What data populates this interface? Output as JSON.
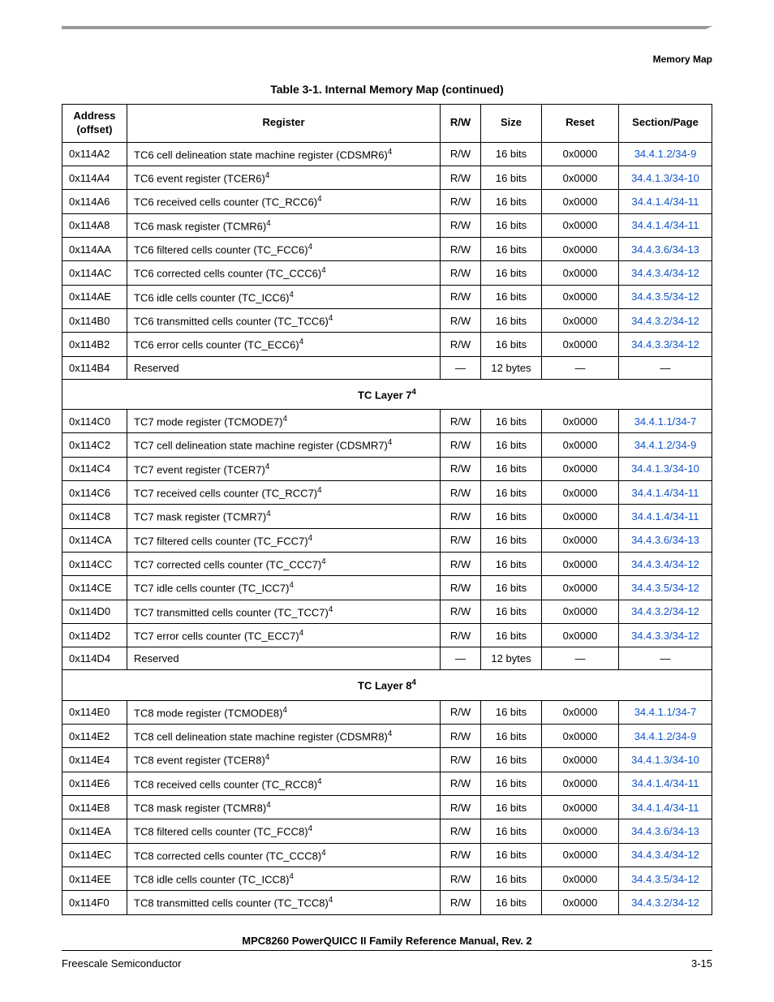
{
  "header": {
    "label": "Memory Map"
  },
  "table": {
    "title": "Table 3-1. Internal Memory Map (continued)",
    "columns": {
      "address": "Address\n(offset)",
      "register": "Register",
      "rw": "R/W",
      "size": "Size",
      "reset": "Reset",
      "section": "Section/Page"
    },
    "rows": [
      {
        "addr": "0x114A2",
        "reg": "TC6 cell delineation state machine register (CDSMR6)",
        "sup": "4",
        "rw": "R/W",
        "size": "16 bits",
        "reset": "0x0000",
        "section": "34.4.1.2/34-9",
        "link": true
      },
      {
        "addr": "0x114A4",
        "reg": "TC6 event register (TCER6)",
        "sup": "4",
        "rw": "R/W",
        "size": "16 bits",
        "reset": "0x0000",
        "section": "34.4.1.3/34-10",
        "link": true
      },
      {
        "addr": "0x114A6",
        "reg": "TC6 received cells counter (TC_RCC6)",
        "sup": "4",
        "rw": "R/W",
        "size": "16 bits",
        "reset": "0x0000",
        "section": "34.4.1.4/34-11",
        "link": true
      },
      {
        "addr": "0x114A8",
        "reg": "TC6 mask register (TCMR6)",
        "sup": "4",
        "rw": "R/W",
        "size": "16 bits",
        "reset": "0x0000",
        "section": "34.4.1.4/34-11",
        "link": true
      },
      {
        "addr": "0x114AA",
        "reg": "TC6 filtered cells counter (TC_FCC6)",
        "sup": "4",
        "rw": "R/W",
        "size": "16 bits",
        "reset": "0x0000",
        "section": "34.4.3.6/34-13",
        "link": true
      },
      {
        "addr": "0x114AC",
        "reg": "TC6 corrected cells counter (TC_CCC6)",
        "sup": "4",
        "rw": "R/W",
        "size": "16 bits",
        "reset": "0x0000",
        "section": "34.4.3.4/34-12",
        "link": true
      },
      {
        "addr": "0x114AE",
        "reg": "TC6 idle cells counter (TC_ICC6)",
        "sup": "4",
        "rw": "R/W",
        "size": "16 bits",
        "reset": "0x0000",
        "section": "34.4.3.5/34-12",
        "link": true
      },
      {
        "addr": "0x114B0",
        "reg": "TC6 transmitted cells counter (TC_TCC6)",
        "sup": "4",
        "rw": "R/W",
        "size": "16 bits",
        "reset": "0x0000",
        "section": "34.4.3.2/34-12",
        "link": true
      },
      {
        "addr": "0x114B2",
        "reg": "TC6 error cells counter (TC_ECC6)",
        "sup": "4",
        "rw": "R/W",
        "size": "16 bits",
        "reset": "0x0000",
        "section": "34.4.3.3/34-12",
        "link": true
      },
      {
        "addr": "0x114B4",
        "reg": "Reserved",
        "sup": "",
        "rw": "—",
        "size": "12 bytes",
        "reset": "—",
        "section": "—",
        "link": false
      },
      {
        "section_header": "TC Layer 7",
        "sup": "4"
      },
      {
        "addr": "0x114C0",
        "reg": "TC7 mode register (TCMODE7)",
        "sup": "4",
        "rw": "R/W",
        "size": "16 bits",
        "reset": "0x0000",
        "section": "34.4.1.1/34-7",
        "link": true
      },
      {
        "addr": "0x114C2",
        "reg": "TC7 cell delineation state machine register (CDSMR7)",
        "sup": "4",
        "rw": "R/W",
        "size": "16 bits",
        "reset": "0x0000",
        "section": "34.4.1.2/34-9",
        "link": true
      },
      {
        "addr": "0x114C4",
        "reg": "TC7 event register (TCER7)",
        "sup": "4",
        "rw": "R/W",
        "size": "16 bits",
        "reset": "0x0000",
        "section": "34.4.1.3/34-10",
        "link": true
      },
      {
        "addr": "0x114C6",
        "reg": "TC7 received cells counter (TC_RCC7)",
        "sup": "4",
        "rw": "R/W",
        "size": "16 bits",
        "reset": "0x0000",
        "section": "34.4.1.4/34-11",
        "link": true
      },
      {
        "addr": "0x114C8",
        "reg": "TC7 mask register (TCMR7)",
        "sup": "4",
        "rw": "R/W",
        "size": "16 bits",
        "reset": "0x0000",
        "section": "34.4.1.4/34-11",
        "link": true
      },
      {
        "addr": "0x114CA",
        "reg": "TC7 filtered cells counter (TC_FCC7)",
        "sup": "4",
        "rw": "R/W",
        "size": "16 bits",
        "reset": "0x0000",
        "section": "34.4.3.6/34-13",
        "link": true
      },
      {
        "addr": "0x114CC",
        "reg": "TC7 corrected cells counter (TC_CCC7)",
        "sup": "4",
        "rw": "R/W",
        "size": "16 bits",
        "reset": "0x0000",
        "section": "34.4.3.4/34-12",
        "link": true
      },
      {
        "addr": "0x114CE",
        "reg": "TC7 idle cells counter (TC_ICC7)",
        "sup": "4",
        "rw": "R/W",
        "size": "16 bits",
        "reset": "0x0000",
        "section": "34.4.3.5/34-12",
        "link": true
      },
      {
        "addr": "0x114D0",
        "reg": "TC7 transmitted cells counter (TC_TCC7)",
        "sup": "4",
        "rw": "R/W",
        "size": "16 bits",
        "reset": "0x0000",
        "section": "34.4.3.2/34-12",
        "link": true
      },
      {
        "addr": "0x114D2",
        "reg": "TC7 error cells counter (TC_ECC7)",
        "sup": "4",
        "rw": "R/W",
        "size": "16 bits",
        "reset": "0x0000",
        "section": "34.4.3.3/34-12",
        "link": true
      },
      {
        "addr": "0x114D4",
        "reg": "Reserved",
        "sup": "",
        "rw": "—",
        "size": "12 bytes",
        "reset": "—",
        "section": "—",
        "link": false
      },
      {
        "section_header": "TC Layer 8",
        "sup": "4"
      },
      {
        "addr": "0x114E0",
        "reg": "TC8 mode register (TCMODE8)",
        "sup": "4",
        "rw": "R/W",
        "size": "16 bits",
        "reset": "0x0000",
        "section": "34.4.1.1/34-7",
        "link": true
      },
      {
        "addr": "0x114E2",
        "reg": "TC8 cell delineation state machine register (CDSMR8)",
        "sup": "4",
        "rw": "R/W",
        "size": "16 bits",
        "reset": "0x0000",
        "section": "34.4.1.2/34-9",
        "link": true
      },
      {
        "addr": "0x114E4",
        "reg": "TC8 event register (TCER8)",
        "sup": "4",
        "rw": "R/W",
        "size": "16 bits",
        "reset": "0x0000",
        "section": "34.4.1.3/34-10",
        "link": true
      },
      {
        "addr": "0x114E6",
        "reg": "TC8 received cells counter (TC_RCC8)",
        "sup": "4",
        "rw": "R/W",
        "size": "16 bits",
        "reset": "0x0000",
        "section": "34.4.1.4/34-11",
        "link": true
      },
      {
        "addr": "0x114E8",
        "reg": "TC8 mask register (TCMR8)",
        "sup": "4",
        "rw": "R/W",
        "size": "16 bits",
        "reset": "0x0000",
        "section": "34.4.1.4/34-11",
        "link": true
      },
      {
        "addr": "0x114EA",
        "reg": "TC8 filtered cells counter (TC_FCC8)",
        "sup": "4",
        "rw": "R/W",
        "size": "16 bits",
        "reset": "0x0000",
        "section": "34.4.3.6/34-13",
        "link": true
      },
      {
        "addr": "0x114EC",
        "reg": "TC8 corrected cells counter (TC_CCC8)",
        "sup": "4",
        "rw": "R/W",
        "size": "16 bits",
        "reset": "0x0000",
        "section": "34.4.3.4/34-12",
        "link": true
      },
      {
        "addr": "0x114EE",
        "reg": "TC8 idle cells counter (TC_ICC8)",
        "sup": "4",
        "rw": "R/W",
        "size": "16 bits",
        "reset": "0x0000",
        "section": "34.4.3.5/34-12",
        "link": true
      },
      {
        "addr": "0x114F0",
        "reg": "TC8 transmitted cells counter (TC_TCC8)",
        "sup": "4",
        "rw": "R/W",
        "size": "16 bits",
        "reset": "0x0000",
        "section": "34.4.3.2/34-12",
        "link": true
      }
    ]
  },
  "footer": {
    "manual_title": "MPC8260 PowerQUICC II Family Reference Manual, Rev. 2",
    "vendor": "Freescale Semiconductor",
    "page_num": "3-15"
  }
}
